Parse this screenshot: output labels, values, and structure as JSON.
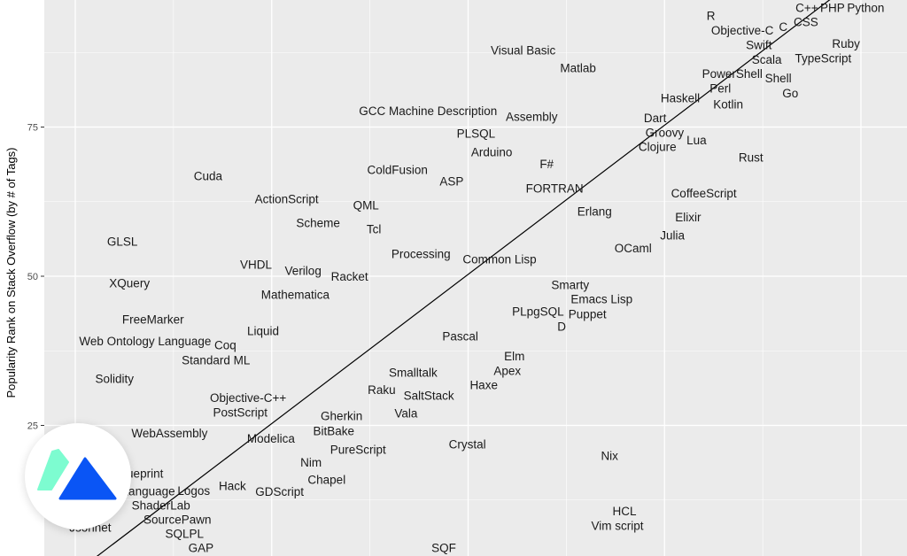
{
  "chart_data": {
    "type": "scatter",
    "title": "",
    "xlabel": "",
    "ylabel": "Popularity Rank on Stack Overflow (by # of Tags)",
    "yticks": [
      25,
      50,
      75
    ],
    "ylim": [
      3,
      96
    ],
    "xlim": [
      -4,
      106
    ],
    "grid": true,
    "trend_line": {
      "slope": 1.0,
      "intercept": 0.3
    },
    "colors": {
      "panel": "#ebebeb",
      "grid": "#ffffff",
      "text": "#1a1a1a",
      "line": "#000000"
    },
    "points": [
      {
        "label": "R",
        "x": 80.9,
        "y": 92.9
      },
      {
        "label": "Objective-C",
        "x": 84.9,
        "y": 90.8
      },
      {
        "label": "Swift",
        "x": 87.0,
        "y": 89.8
      },
      {
        "label": "C",
        "x": 90.1,
        "y": 91.8
      },
      {
        "label": "CSS",
        "x": 93.0,
        "y": 93.9
      },
      {
        "label": "C++",
        "x": 93.9,
        "y": 95.4
      },
      {
        "label": "PHP",
        "x": 96.4,
        "y": 96.0
      },
      {
        "label": "Python",
        "x": 99.8,
        "y": 96.6
      },
      {
        "label": "Ruby",
        "x": 98.1,
        "y": 88.7
      },
      {
        "label": "TypeScript",
        "x": 95.2,
        "y": 86.8
      },
      {
        "label": "Scala",
        "x": 88.0,
        "y": 85.8
      },
      {
        "label": "PowerShell",
        "x": 84.0,
        "y": 84.0
      },
      {
        "label": "Shell",
        "x": 89.1,
        "y": 82.9
      },
      {
        "label": "Perl",
        "x": 82.1,
        "y": 81.9
      },
      {
        "label": "Go",
        "x": 91.0,
        "y": 80.9
      },
      {
        "label": "Haskell",
        "x": 77.0,
        "y": 79.8
      },
      {
        "label": "Kotlin",
        "x": 83.1,
        "y": 78.8
      },
      {
        "label": "Visual Basic",
        "x": 57.0,
        "y": 87.8
      },
      {
        "label": "Matlab",
        "x": 64.0,
        "y": 84.9
      },
      {
        "label": "GCC Machine Description",
        "x": 44.9,
        "y": 77.7
      },
      {
        "label": "Assembly",
        "x": 58.1,
        "y": 76.7
      },
      {
        "label": "PLSQL",
        "x": 51.0,
        "y": 73.9
      },
      {
        "label": "Arduino",
        "x": 53.0,
        "y": 70.8
      },
      {
        "label": "F#",
        "x": 60.0,
        "y": 68.8
      },
      {
        "label": "ColdFusion",
        "x": 41.0,
        "y": 67.8
      },
      {
        "label": "ASP",
        "x": 47.9,
        "y": 65.9
      },
      {
        "label": "FORTRAN",
        "x": 61.0,
        "y": 64.7
      },
      {
        "label": "Erlang",
        "x": 66.1,
        "y": 60.8
      },
      {
        "label": "Dart",
        "x": 73.8,
        "y": 75.8
      },
      {
        "label": "Groovy",
        "x": 75.1,
        "y": 74.6
      },
      {
        "label": "Lua",
        "x": 79.0,
        "y": 72.8
      },
      {
        "label": "Clojure",
        "x": 74.1,
        "y": 71.8
      },
      {
        "label": "Rust",
        "x": 86.0,
        "y": 69.9
      },
      {
        "label": "CoffeeScript",
        "x": 80.0,
        "y": 63.9
      },
      {
        "label": "Elixir",
        "x": 78.0,
        "y": 59.9
      },
      {
        "label": "Julia",
        "x": 76.0,
        "y": 56.8
      },
      {
        "label": "OCaml",
        "x": 71.0,
        "y": 54.7
      },
      {
        "label": "Cuda",
        "x": 16.9,
        "y": 66.8
      },
      {
        "label": "ActionScript",
        "x": 26.9,
        "y": 62.9
      },
      {
        "label": "QML",
        "x": 37.0,
        "y": 61.9
      },
      {
        "label": "Scheme",
        "x": 30.9,
        "y": 58.9
      },
      {
        "label": "Tcl",
        "x": 38.0,
        "y": 57.9
      },
      {
        "label": "GLSL",
        "x": 6.0,
        "y": 55.8
      },
      {
        "label": "Processing",
        "x": 44.0,
        "y": 53.7
      },
      {
        "label": "Common Lisp",
        "x": 54.0,
        "y": 52.8
      },
      {
        "label": "VHDL",
        "x": 23.0,
        "y": 51.9
      },
      {
        "label": "Verilog",
        "x": 29.0,
        "y": 50.9
      },
      {
        "label": "Racket",
        "x": 34.9,
        "y": 49.9
      },
      {
        "label": "XQuery",
        "x": 6.9,
        "y": 48.8
      },
      {
        "label": "Mathematica",
        "x": 28.0,
        "y": 46.9
      },
      {
        "label": "Smarty",
        "x": 63.0,
        "y": 47.8
      },
      {
        "label": "Emacs Lisp",
        "x": 67.0,
        "y": 45.7
      },
      {
        "label": "Puppet",
        "x": 65.1,
        "y": 44.8
      },
      {
        "label": "PLpgSQL",
        "x": 58.9,
        "y": 43.8
      },
      {
        "label": "D",
        "x": 62.0,
        "y": 41.8
      },
      {
        "label": "FreeMarker",
        "x": 9.9,
        "y": 42.7
      },
      {
        "label": "Liquid",
        "x": 23.9,
        "y": 40.8
      },
      {
        "label": "Pascal",
        "x": 49.0,
        "y": 39.9
      },
      {
        "label": "Web Ontology Language",
        "x": 8.9,
        "y": 38.9
      },
      {
        "label": "Coq",
        "x": 19.1,
        "y": 37.7
      },
      {
        "label": "Standard ML",
        "x": 17.9,
        "y": 36.8
      },
      {
        "label": "Elm",
        "x": 55.9,
        "y": 35.8
      },
      {
        "label": "Apex",
        "x": 55.0,
        "y": 34.7
      },
      {
        "label": "Smalltalk",
        "x": 43.0,
        "y": 33.8
      },
      {
        "label": "Solidity",
        "x": 5.0,
        "y": 32.8
      },
      {
        "label": "Haxe",
        "x": 52.0,
        "y": 31.9
      },
      {
        "label": "Raku",
        "x": 39.0,
        "y": 30.9
      },
      {
        "label": "SaltStack",
        "x": 45.0,
        "y": 30.0
      },
      {
        "label": "Objective-C++",
        "x": 22.0,
        "y": 28.9
      },
      {
        "label": "PostScript",
        "x": 21.0,
        "y": 27.9
      },
      {
        "label": "Vala",
        "x": 42.1,
        "y": 27.0
      },
      {
        "label": "Gherkin",
        "x": 33.9,
        "y": 25.8
      },
      {
        "label": "BitBake",
        "x": 32.9,
        "y": 24.8
      },
      {
        "label": "WebAssembly",
        "x": 12.0,
        "y": 23.7
      },
      {
        "label": "Modelica",
        "x": 24.9,
        "y": 22.8
      },
      {
        "label": "Crystal",
        "x": 49.9,
        "y": 21.8
      },
      {
        "label": "PureScript",
        "x": 36.0,
        "y": 20.9
      },
      {
        "label": "Nix",
        "x": 68.0,
        "y": 19.9
      },
      {
        "label": "Nim",
        "x": 30.0,
        "y": 18.8
      },
      {
        "label": "Blueprint",
        "x": 8.2,
        "y": 16.9
      },
      {
        "label": "Chapel",
        "x": 32.0,
        "y": 15.9
      },
      {
        "label": "Hack",
        "x": 20.0,
        "y": 14.8
      },
      {
        "label": "GDScript",
        "x": 26.0,
        "y": 13.9
      },
      {
        "label": "Language",
        "x": 9.4,
        "y": 12.8
      },
      {
        "label": "Logos",
        "x": 15.0,
        "y": 11.7
      },
      {
        "label": "ShaderLab",
        "x": 10.9,
        "y": 10.7
      },
      {
        "label": "HCL",
        "x": 69.9,
        "y": 9.9
      },
      {
        "label": "Vim script",
        "x": 69.0,
        "y": 8.9
      },
      {
        "label": "Jsonnet",
        "x": 1.9,
        "y": 7.9
      },
      {
        "label": "SourcePawn",
        "x": 13.0,
        "y": 6.8
      },
      {
        "label": "SQLPL",
        "x": 13.9,
        "y": 5.9
      },
      {
        "label": "GAP",
        "x": 16.0,
        "y": 4.9
      },
      {
        "label": "SQF",
        "x": 46.9,
        "y": 4.0
      }
    ]
  },
  "watermark": {
    "name": "mountain-logo",
    "colors": {
      "left": "#7dfcd0",
      "right": "#0a55f5"
    }
  }
}
